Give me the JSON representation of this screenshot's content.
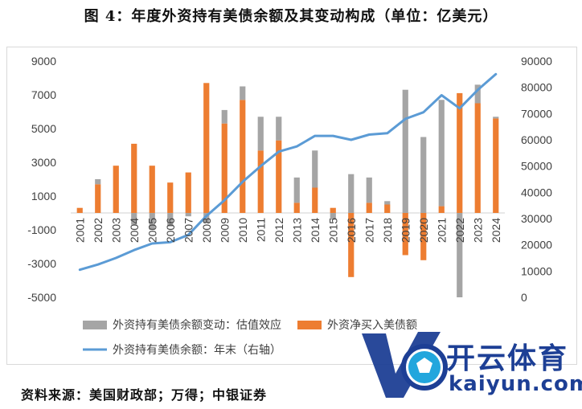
{
  "title": "图 4：年度外资持有美债余额及其变动构成（单位：亿美元）",
  "source": "资料来源：美国财政部；万得；中银证券",
  "logo": {
    "cn": "开云体育",
    "en": "kaiyun.com"
  },
  "colors": {
    "valuation": "#a5a5a5",
    "netbuy": "#ed7d31",
    "balance": "#5b9bd5",
    "axis": "#595959",
    "grid": "#d9d9d9"
  },
  "chart_data": {
    "type": "bar",
    "categories": [
      "2001",
      "2002",
      "2003",
      "2004",
      "2005",
      "2006",
      "2007",
      "2008",
      "2009",
      "2010",
      "2011",
      "2012",
      "2013",
      "2014",
      "2015",
      "2016",
      "2017",
      "2018",
      "2019",
      "2020",
      "2021",
      "2022",
      "2023",
      "2024"
    ],
    "series": [
      {
        "name": "外资持有美债余额变动：估值效应",
        "kind": "bar",
        "axis": "left",
        "values": [
          0,
          300,
          0,
          -700,
          -1000,
          -800,
          -200,
          -600,
          800,
          800,
          2000,
          1400,
          1500,
          2200,
          -400,
          2300,
          1500,
          200,
          7300,
          4500,
          6300,
          -5000,
          1100,
          100
        ]
      },
      {
        "name": "外资净买入美债额",
        "kind": "bar",
        "axis": "left",
        "values": [
          300,
          1700,
          2800,
          4100,
          2800,
          1800,
          2400,
          7700,
          5300,
          6700,
          3700,
          4300,
          600,
          1500,
          300,
          -3800,
          600,
          500,
          -2500,
          -2800,
          400,
          7100,
          6500,
          5600
        ]
      },
      {
        "name": "外资持有美债余额：年末（右轴）",
        "kind": "line",
        "axis": "right",
        "values": [
          10500,
          12500,
          15000,
          18000,
          20500,
          21000,
          23800,
          31000,
          37000,
          44000,
          50000,
          55500,
          57500,
          61500,
          61500,
          60000,
          62000,
          62500,
          68000,
          70500,
          77000,
          72000,
          79000,
          85000
        ]
      }
    ],
    "y_left": {
      "min": -5000,
      "max": 9000,
      "ticks": [
        9000,
        7000,
        5000,
        3000,
        1000,
        -1000,
        -3000,
        -5000
      ]
    },
    "y_right": {
      "min": 0,
      "max": 90000,
      "ticks": [
        90000,
        80000,
        70000,
        60000,
        50000,
        40000,
        30000,
        20000,
        10000,
        0
      ]
    },
    "grid": false,
    "legend_position": "bottom"
  }
}
